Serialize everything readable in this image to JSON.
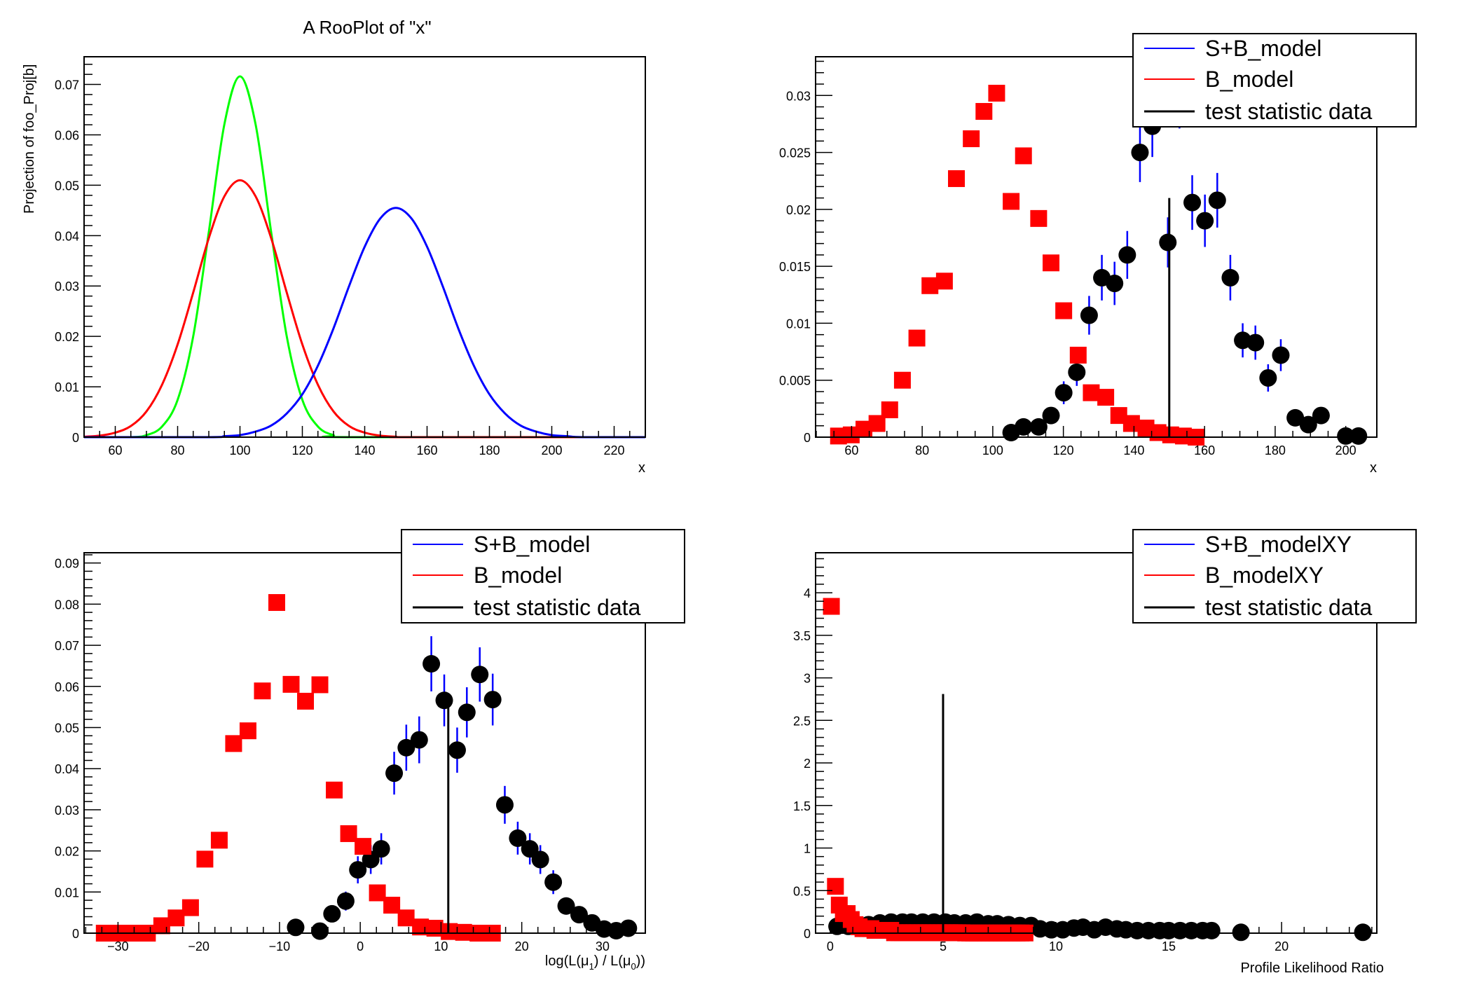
{
  "chart_data": [
    {
      "type": "line",
      "title": "A RooPlot of \"x\"",
      "xlabel": "x",
      "ylabel": "Projection of foo_Proj[b]",
      "xlim": [
        50,
        230
      ],
      "ylim": [
        0,
        0.0755
      ],
      "xticks": [
        60,
        80,
        100,
        120,
        140,
        160,
        180,
        200,
        220
      ],
      "xtick_labels": [
        "60",
        "80",
        "100",
        "120",
        "140",
        "160",
        "180",
        "200",
        "220"
      ],
      "xminor": 5,
      "yticks": [
        0,
        0.01,
        0.02,
        0.03,
        0.04,
        0.05,
        0.06,
        0.07
      ],
      "ytick_labels": [
        "0",
        "0.01",
        "0.02",
        "0.03",
        "0.04",
        "0.05",
        "0.06",
        "0.07"
      ],
      "yminor": 0.002,
      "grid": false,
      "series": [
        {
          "style": "curve",
          "color": "#00ff00",
          "x": [
            50,
            65,
            70,
            75,
            80,
            85,
            90,
            95,
            100,
            105,
            110,
            115,
            120,
            125,
            130,
            135,
            230
          ],
          "y": [
            0,
            0,
            0.0004,
            0.0021,
            0.0074,
            0.02,
            0.0407,
            0.0621,
            0.0716,
            0.0621,
            0.0407,
            0.02,
            0.0074,
            0.0021,
            0.0004,
            0,
            0
          ]
        },
        {
          "style": "curve",
          "color": "#ff0000",
          "x": [
            50,
            55,
            60,
            65,
            70,
            75,
            80,
            85,
            90,
            95,
            100,
            105,
            110,
            115,
            120,
            125,
            130,
            135,
            140,
            145,
            150,
            155,
            230
          ],
          "y": [
            0.0001,
            0.0003,
            0.0009,
            0.0022,
            0.0051,
            0.0104,
            0.0184,
            0.0287,
            0.0395,
            0.0478,
            0.051,
            0.0478,
            0.0395,
            0.0287,
            0.0184,
            0.0104,
            0.0051,
            0.0022,
            0.0009,
            0.0003,
            0.0001,
            0,
            0
          ]
        },
        {
          "style": "curve",
          "color": "#0000ff",
          "x": [
            50,
            90,
            95,
            100,
            105,
            110,
            115,
            120,
            125,
            130,
            135,
            140,
            145,
            150,
            155,
            160,
            165,
            170,
            175,
            180,
            185,
            190,
            195,
            200,
            205,
            210,
            230
          ],
          "y": [
            0,
            0,
            0.0002,
            0.0004,
            0.0011,
            0.0023,
            0.0047,
            0.0085,
            0.0142,
            0.0216,
            0.03,
            0.0378,
            0.0434,
            0.0455,
            0.0434,
            0.0378,
            0.03,
            0.0216,
            0.0142,
            0.0085,
            0.0047,
            0.0023,
            0.0011,
            0.0004,
            0.0002,
            0,
            0
          ]
        }
      ]
    },
    {
      "type": "scatter",
      "xlabel": "x",
      "xlim": [
        49.8,
        208.8
      ],
      "ylim": [
        0,
        0.0334
      ],
      "xticks": [
        60,
        80,
        100,
        120,
        140,
        160,
        180,
        200
      ],
      "xtick_labels": [
        "60",
        "80",
        "100",
        "120",
        "140",
        "160",
        "180",
        "200"
      ],
      "xminor": 5,
      "yticks": [
        0,
        0.005,
        0.01,
        0.015,
        0.02,
        0.025,
        0.03
      ],
      "ytick_labels": [
        "0",
        "0.005",
        "0.01",
        "0.015",
        "0.02",
        "0.025",
        "0.03"
      ],
      "yminor": 0.001,
      "grid": false,
      "legend_position": "top-right",
      "legend": [
        {
          "label": "S+B_model",
          "color": "#0000ff"
        },
        {
          "label": "B_model",
          "color": "#ff0000"
        },
        {
          "label": "test statistic data",
          "color": "#000000"
        }
      ],
      "series": [
        {
          "name": "S+B_model",
          "style": "circles",
          "color": "#000000",
          "errcolor": "#0000ff",
          "x": [
            105.2,
            108.7,
            113.0,
            116.5,
            120.1,
            123.8,
            127.3,
            130.9,
            134.5,
            138.1,
            141.7,
            145.2,
            149.6,
            152.9,
            156.5,
            160.1,
            163.6,
            167.3,
            170.8,
            174.4,
            178.0,
            181.6,
            185.7,
            189.4,
            193.0,
            200.0,
            203.6
          ],
          "y": [
            0.0004,
            0.0009,
            0.0009,
            0.0019,
            0.0039,
            0.0057,
            0.0107,
            0.014,
            0.0135,
            0.016,
            0.025,
            0.0273,
            0.0171,
            0.03,
            0.0206,
            0.019,
            0.0208,
            0.014,
            0.0085,
            0.0083,
            0.0052,
            0.0072,
            0.0017,
            0.0011,
            0.0019,
            0.0001,
            0.0001
          ],
          "yerr": [
            0.0003,
            0.0005,
            0.0005,
            0.0007,
            0.001,
            0.0012,
            0.0017,
            0.002,
            0.0019,
            0.0021,
            0.0026,
            0.0027,
            0.0022,
            0.0029,
            0.0024,
            0.0023,
            0.0024,
            0.002,
            0.0015,
            0.0015,
            0.0012,
            0.0014,
            0.0007,
            0.0005,
            0.0007,
            0.0002,
            0.0002
          ]
        },
        {
          "name": "B_model",
          "style": "squares",
          "color": "#ff0000",
          "x": [
            56.3,
            59.9,
            63.5,
            67.2,
            70.8,
            74.4,
            78.5,
            82.2,
            86.3,
            89.7,
            93.9,
            97.5,
            101.1,
            105.2,
            108.7,
            113.0,
            116.5,
            120.1,
            124.2,
            127.9,
            132.0,
            135.7,
            139.3,
            143.4,
            146.8,
            150.4,
            154.0,
            157.6
          ],
          "y": [
            0.0001,
            0.0002,
            0.0007,
            0.0012,
            0.0024,
            0.005,
            0.0087,
            0.0133,
            0.0137,
            0.0227,
            0.0262,
            0.0286,
            0.0302,
            0.0207,
            0.0247,
            0.0192,
            0.0153,
            0.0111,
            0.0072,
            0.0039,
            0.0035,
            0.0019,
            0.0012,
            0.0008,
            0.0004,
            0.0002,
            0.0001,
            0
          ]
        },
        {
          "name": "test statistic data",
          "style": "vline",
          "color": "#000000",
          "x": 150,
          "y": 0.021
        }
      ]
    },
    {
      "type": "scatter",
      "xlabel_parts": [
        "log(L(μ",
        "1",
        ") / L(μ",
        "0",
        "))"
      ],
      "xlim": [
        -34.2,
        35.3
      ],
      "ylim": [
        0,
        0.0925
      ],
      "xticks": [
        -30,
        -20,
        -10,
        0,
        10,
        20,
        30
      ],
      "xtick_labels": [
        "−30",
        "−20",
        "−10",
        "0",
        "10",
        "20",
        "30"
      ],
      "xminor": 2,
      "yticks": [
        0,
        0.01,
        0.02,
        0.03,
        0.04,
        0.05,
        0.06,
        0.07,
        0.08,
        0.09
      ],
      "ytick_labels": [
        "0",
        "0.01",
        "0.02",
        "0.03",
        "0.04",
        "0.05",
        "0.06",
        "0.07",
        "0.08",
        "0.09"
      ],
      "yminor": 0.002,
      "grid": false,
      "legend_position": "top-right",
      "legend": [
        {
          "label": "S+B_model",
          "color": "#0000ff"
        },
        {
          "label": "B_model",
          "color": "#ff0000"
        },
        {
          "label": "test statistic data",
          "color": "#000000"
        }
      ],
      "series": [
        {
          "name": "S+B_model",
          "style": "circles",
          "color": "#000000",
          "errcolor": "#0000ff",
          "x": [
            -8.0,
            -5.0,
            -3.5,
            -1.8,
            -0.3,
            1.3,
            2.6,
            4.2,
            5.7,
            7.3,
            8.8,
            10.4,
            12.0,
            13.2,
            14.8,
            16.4,
            17.9,
            19.5,
            21.0,
            22.3,
            23.9,
            25.5,
            27.1,
            28.7,
            30.2,
            31.7,
            33.2
          ],
          "y": [
            0.0014,
            0.0005,
            0.0047,
            0.0078,
            0.0154,
            0.0179,
            0.0205,
            0.0389,
            0.0451,
            0.047,
            0.0655,
            0.0566,
            0.0445,
            0.0537,
            0.0629,
            0.0568,
            0.0312,
            0.0231,
            0.0205,
            0.0179,
            0.0124,
            0.0066,
            0.0045,
            0.0025,
            0.001,
            0.0006,
            0.0012
          ],
          "yerr": [
            0.001,
            0.0006,
            0.0018,
            0.0023,
            0.0033,
            0.0035,
            0.0038,
            0.0052,
            0.0056,
            0.0057,
            0.0067,
            0.0063,
            0.0055,
            0.0061,
            0.0066,
            0.0063,
            0.0046,
            0.004,
            0.0038,
            0.0035,
            0.0029,
            0.0021,
            0.0018,
            0.0013,
            0.0008,
            0.0006,
            0.0009
          ]
        },
        {
          "name": "B_model",
          "style": "squares",
          "color": "#ff0000",
          "x": [
            -31.7,
            -29.92,
            -28.14,
            -26.36,
            -24.58,
            -22.8,
            -21.02,
            -19.24,
            -17.46,
            -15.68,
            -13.9,
            -12.12,
            -10.34,
            -8.56,
            -6.78,
            -5.0,
            -3.22,
            -1.44,
            0.34,
            2.12,
            3.9,
            5.68,
            7.46,
            9.24,
            11.02,
            12.8,
            14.58,
            16.36
          ],
          "y": [
            0,
            0,
            0,
            0,
            0.0018,
            0.0037,
            0.0062,
            0.018,
            0.0226,
            0.0461,
            0.0492,
            0.0589,
            0.0804,
            0.0605,
            0.0564,
            0.0604,
            0.0348,
            0.0242,
            0.0211,
            0.0098,
            0.0068,
            0.0037,
            0.0015,
            0.0012,
            0.0004,
            0.0002,
            0,
            0
          ]
        },
        {
          "name": "test statistic data",
          "style": "vline",
          "color": "#000000",
          "x": 10.9,
          "y": 0.0556
        }
      ]
    },
    {
      "type": "scatter",
      "xlabel": "Profile Likelihood Ratio",
      "xlim": [
        -0.65,
        24.22
      ],
      "ylim": [
        0,
        4.47
      ],
      "xticks": [
        0,
        5,
        10,
        15,
        20
      ],
      "xtick_labels": [
        "0",
        "5",
        "10",
        "15",
        "20"
      ],
      "xminor": 1,
      "yticks": [
        0,
        0.5,
        1,
        1.5,
        2,
        2.5,
        3,
        3.5,
        4
      ],
      "ytick_labels": [
        "0",
        "0.5",
        "1",
        "1.5",
        "2",
        "2.5",
        "3",
        "3.5",
        "4"
      ],
      "yminor": 0.1,
      "grid": false,
      "legend_position": "top-right",
      "legend": [
        {
          "label": "S+B_modelXY",
          "color": "#0000ff"
        },
        {
          "label": "B_modelXY",
          "color": "#ff0000"
        },
        {
          "label": "test statistic data",
          "color": "#000000"
        }
      ],
      "series": [
        {
          "name": "S+B_modelXY",
          "style": "circles",
          "color": "#000000",
          "errcolor": "#0000ff",
          "x": [
            0.3,
            0.8,
            1.3,
            1.7,
            2.2,
            2.7,
            3.2,
            3.6,
            4.1,
            4.6,
            5.1,
            5.5,
            6.0,
            6.5,
            7.0,
            7.4,
            7.9,
            8.4,
            8.9,
            9.3,
            9.8,
            10.3,
            10.8,
            11.2,
            11.7,
            12.2,
            12.7,
            13.1,
            13.6,
            14.1,
            14.6,
            15.0,
            15.5,
            16.0,
            16.5,
            16.9,
            18.2,
            23.6
          ],
          "y": [
            0.08,
            0.08,
            0.09,
            0.1,
            0.12,
            0.13,
            0.13,
            0.13,
            0.13,
            0.13,
            0.13,
            0.12,
            0.12,
            0.13,
            0.11,
            0.11,
            0.1,
            0.09,
            0.09,
            0.05,
            0.04,
            0.04,
            0.06,
            0.07,
            0.04,
            0.07,
            0.05,
            0.04,
            0.03,
            0.03,
            0.03,
            0.03,
            0.03,
            0.03,
            0.03,
            0.03,
            0.01,
            0.01
          ]
        },
        {
          "name": "B_modelXY",
          "style": "squares",
          "color": "#ff0000",
          "x": [
            0.05,
            0.23,
            0.4,
            0.58,
            0.75,
            0.93,
            1.1,
            1.28,
            1.45,
            1.63,
            1.8,
            1.98,
            2.15,
            2.33,
            2.5,
            2.68,
            2.85,
            3.03,
            3.2,
            3.38,
            3.55,
            3.73,
            3.9,
            4.08,
            4.25,
            4.43,
            4.6,
            4.78,
            4.95,
            5.13,
            5.3,
            5.48,
            5.65,
            5.83,
            6.0,
            6.18,
            6.35,
            6.53,
            6.7,
            6.88,
            7.05,
            7.23,
            7.4,
            7.58,
            7.75,
            7.93,
            8.1,
            8.28,
            8.45,
            8.63
          ],
          "y": [
            3.84,
            0.55,
            0.33,
            0.23,
            0.23,
            0.16,
            0.1,
            0.075,
            0.053,
            0.053,
            0.053,
            0.033,
            0.033,
            0.033,
            0.033,
            0.033,
            0.005,
            0.005,
            0.005,
            0.005,
            0.005,
            0.005,
            0.005,
            0.005,
            0.005,
            0.005,
            0.005,
            0.005,
            0.005,
            0.005,
            0.005,
            0.005,
            0.005,
            0.005,
            0.002,
            0.002,
            0.002,
            0.002,
            0.002,
            0.002,
            0.002,
            0.002,
            0.002,
            0.002,
            0.002,
            0.002,
            0.002,
            0.002,
            0.002,
            0.002
          ]
        },
        {
          "name": "test statistic data",
          "style": "vline",
          "color": "#000000",
          "x": 5.0,
          "y": 2.81
        }
      ]
    }
  ]
}
